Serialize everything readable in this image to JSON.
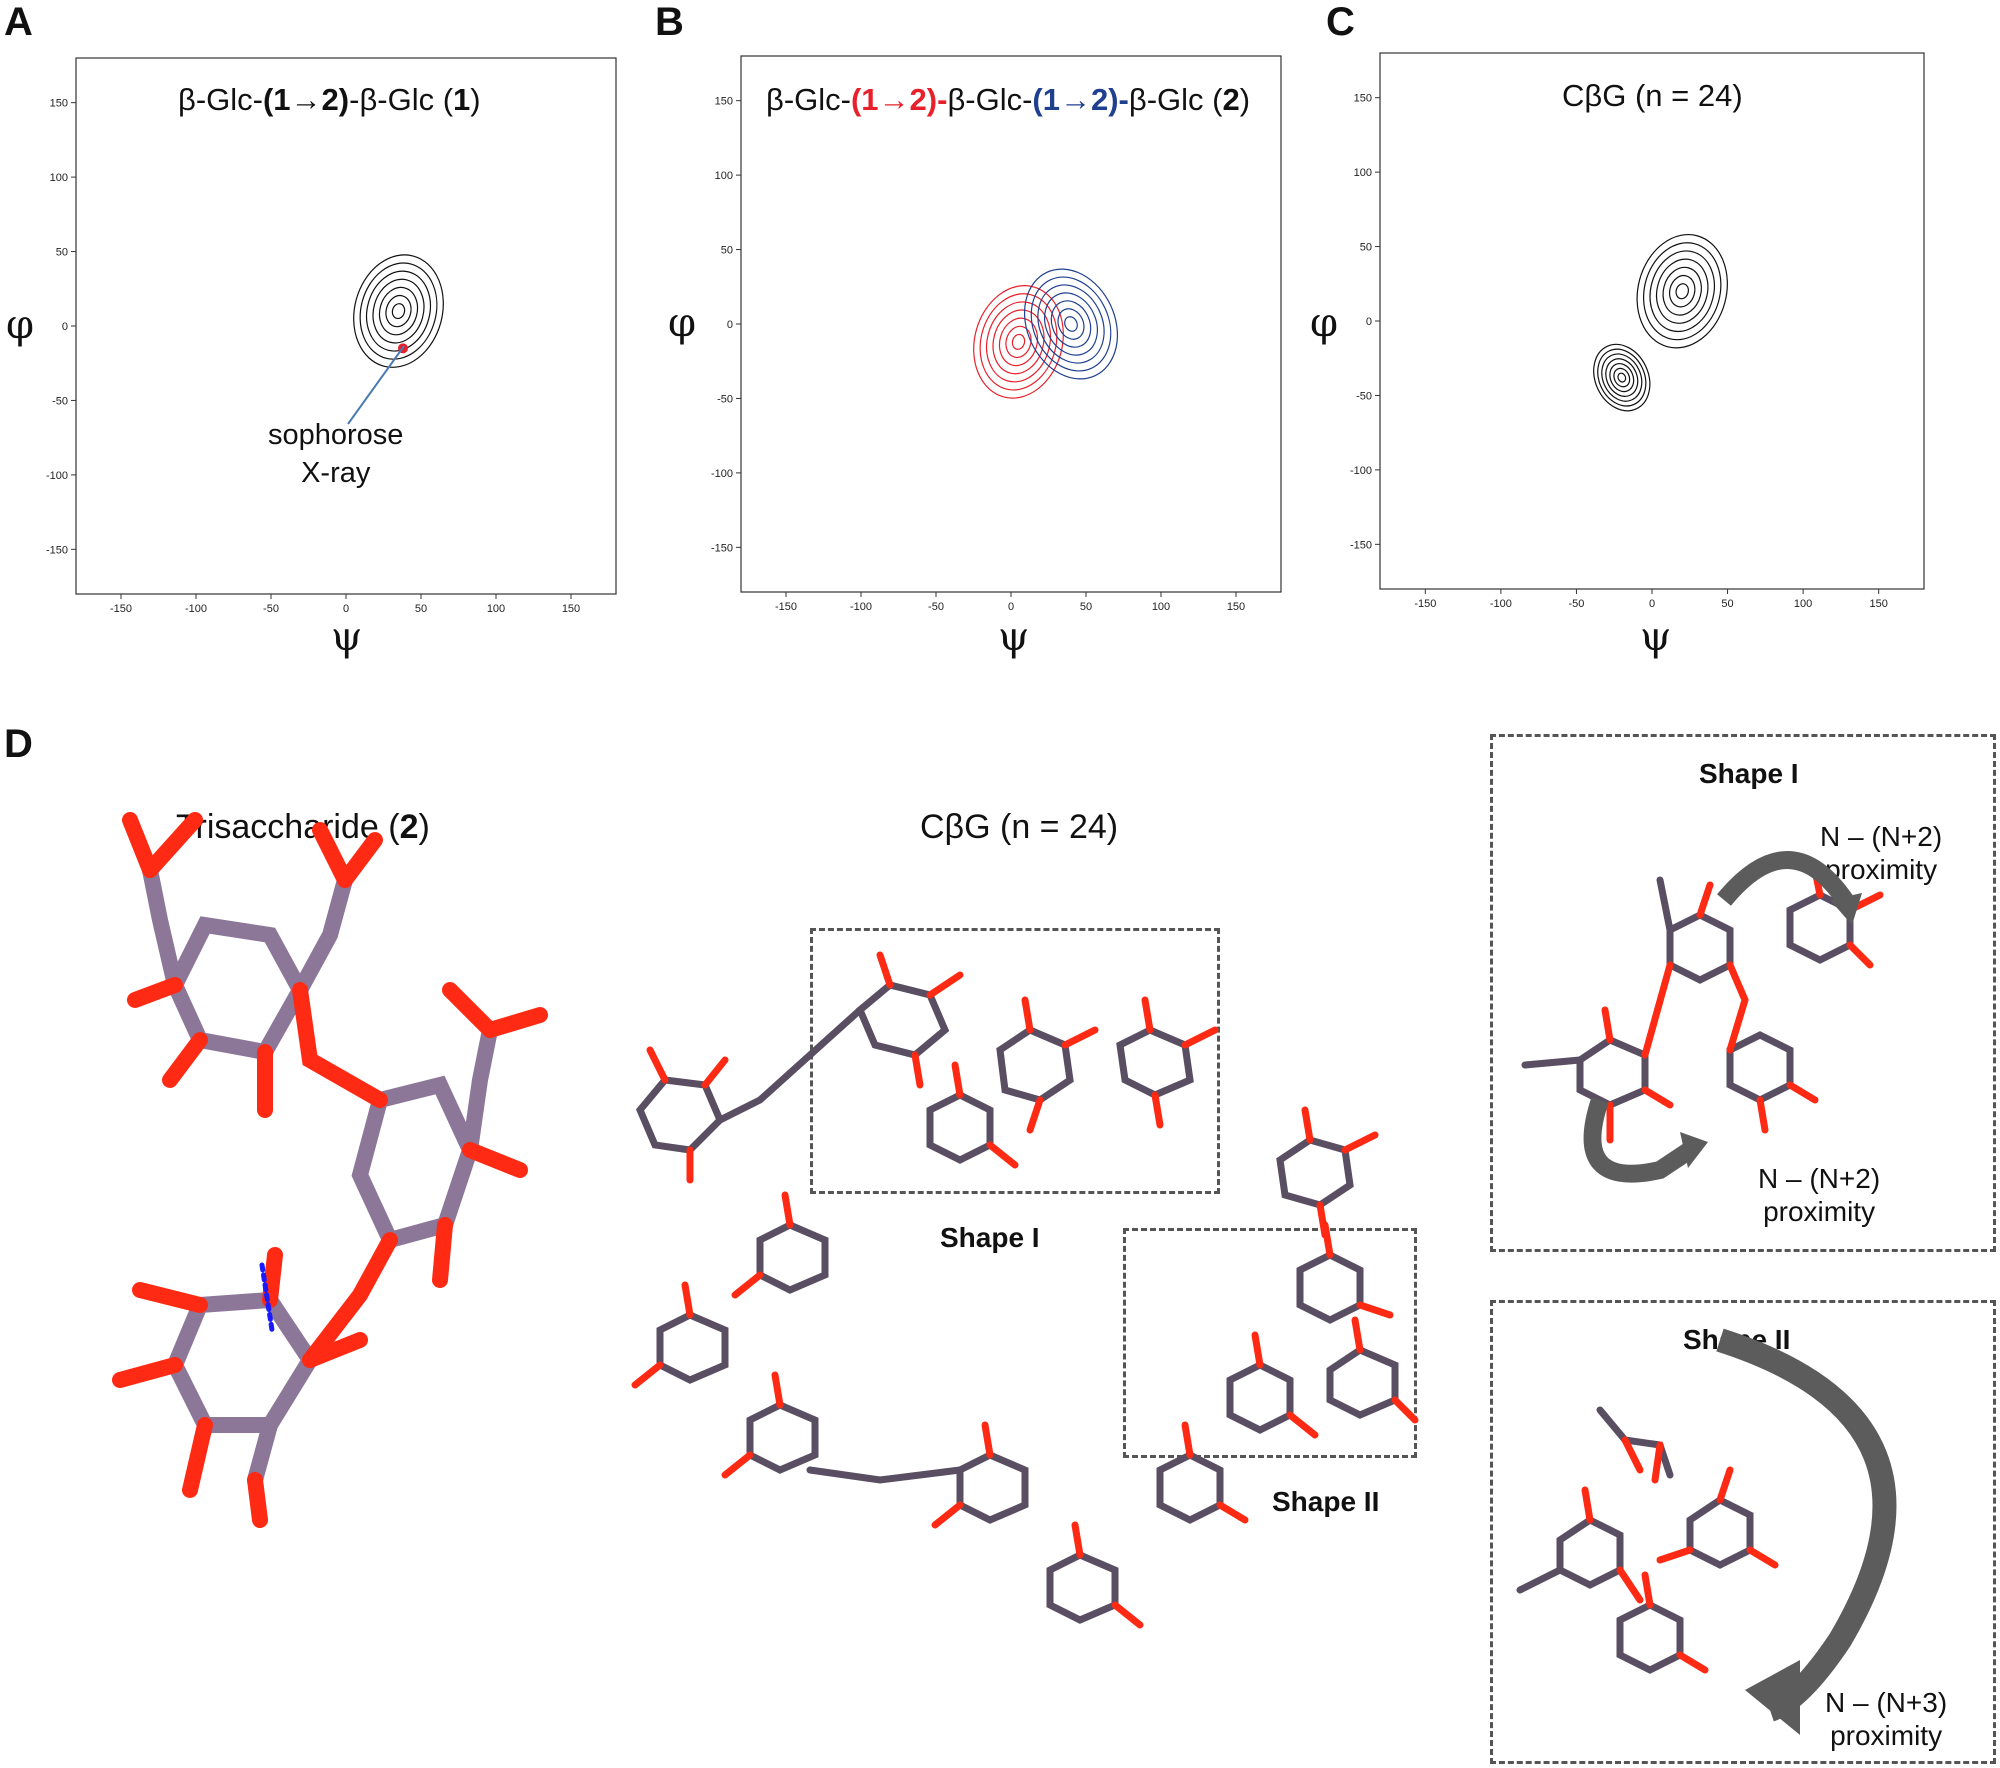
{
  "panels": {
    "A": {
      "letter": "A",
      "title_pre": "β-Glc-",
      "title_bold": "(1→2)",
      "title_mid": "-β-Glc (",
      "title_num": "1",
      "title_end": ")",
      "annotation_line1": "sophorose",
      "annotation_line2": "X-ray"
    },
    "B": {
      "letter": "B",
      "t1": "β-Glc-",
      "t2": "(1→2)-",
      "t3": "β-Glc-",
      "t4": "(1→2)-",
      "t5": "β-Glc (",
      "t6": "2",
      "t7": ")"
    },
    "C": {
      "letter": "C",
      "title": "CβG (n = 24)"
    },
    "D": {
      "letter": "D",
      "tri_label_pre": "Trisaccharide (",
      "tri_label_num": "2",
      "tri_label_end": ")",
      "cbg_label": "CβG (n = 24)",
      "shape1_label": "Shape I",
      "shape2_label": "Shape II",
      "box1_title": "Shape I",
      "box2_title": "Shape II",
      "prox1_line1": "N – (N+2)",
      "prox1_line2": "proximity",
      "prox2_line1": "N – (N+2)",
      "prox2_line2": "proximity",
      "prox3_line1": "N – (N+3)",
      "prox3_line2": "proximity"
    }
  },
  "axis": {
    "x_symbol": "ψ",
    "y_symbol": "φ"
  },
  "colors": {
    "black": "#111111",
    "red": "#e8202a",
    "blue": "#1f3f8f",
    "bond_purple": "#9a86a6",
    "oxygen_red": "#ff2a14",
    "arrow_gray": "#5c5c5c"
  },
  "chart_data": [
    {
      "type": "contour",
      "panel": "A",
      "title": "β-Glc-(1→2)-β-Glc (1)",
      "xlabel": "ψ",
      "ylabel": "φ",
      "xlim": [
        -180,
        180
      ],
      "ylim": [
        -180,
        180
      ],
      "xticks": [
        -150,
        -100,
        -50,
        0,
        50,
        100,
        150
      ],
      "yticks": [
        150,
        100,
        50,
        0,
        -50,
        -100,
        -150
      ],
      "series": [
        {
          "color": "#111111",
          "center": [
            35,
            10
          ]
        }
      ],
      "marker": {
        "label": "sophorose X-ray",
        "x": 38,
        "y": -15
      }
    },
    {
      "type": "contour",
      "panel": "B",
      "title": "β-Glc-(1→2)-β-Glc-(1→2)-β-Glc (2)",
      "xlabel": "ψ",
      "ylabel": "φ",
      "xlim": [
        -180,
        180
      ],
      "ylim": [
        -180,
        180
      ],
      "xticks": [
        -150,
        -100,
        -50,
        0,
        50,
        100,
        150
      ],
      "yticks": [
        150,
        100,
        50,
        0,
        -50,
        -100,
        -150
      ],
      "series": [
        {
          "color": "#e8202a",
          "center": [
            5,
            -12
          ]
        },
        {
          "color": "#1f3f8f",
          "center": [
            40,
            0
          ]
        }
      ]
    },
    {
      "type": "contour",
      "panel": "C",
      "title": "CβG (n = 24)",
      "xlabel": "ψ",
      "ylabel": "φ",
      "xlim": [
        -180,
        180
      ],
      "ylim": [
        -180,
        180
      ],
      "xticks": [
        -150,
        -100,
        -50,
        0,
        50,
        100,
        150
      ],
      "yticks": [
        150,
        100,
        50,
        0,
        -50,
        -100,
        -150
      ],
      "series": [
        {
          "color": "#111111",
          "center": [
            20,
            20
          ]
        },
        {
          "color": "#111111",
          "center": [
            -20,
            -38
          ]
        }
      ]
    }
  ]
}
